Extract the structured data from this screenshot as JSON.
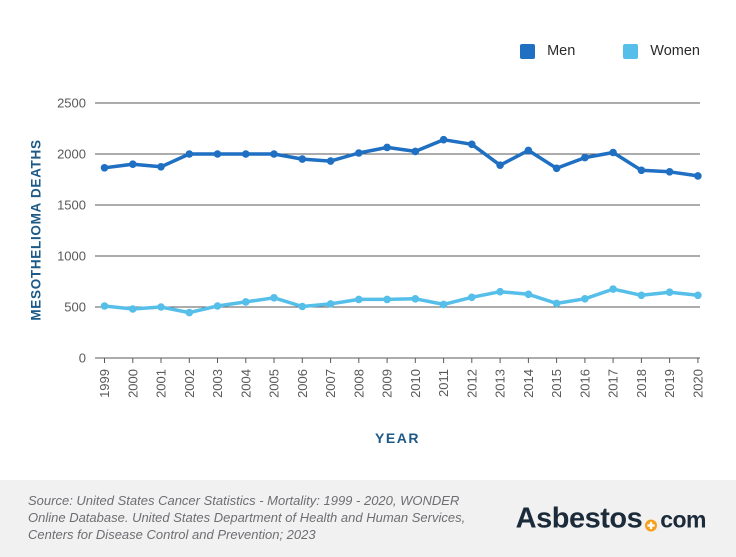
{
  "chart_data": {
    "type": "line",
    "title": "",
    "x": [
      1999,
      2000,
      2001,
      2002,
      2003,
      2004,
      2005,
      2006,
      2007,
      2008,
      2009,
      2010,
      2011,
      2012,
      2013,
      2014,
      2015,
      2016,
      2017,
      2018,
      2019,
      2020
    ],
    "series": [
      {
        "name": "Men",
        "color": "#1f6fc2",
        "values": [
          1865,
          1900,
          1875,
          2000,
          2000,
          2000,
          2000,
          1950,
          1930,
          2010,
          2065,
          2025,
          2140,
          2095,
          1890,
          2035,
          1860,
          1965,
          2015,
          1840,
          1825,
          1785
        ]
      },
      {
        "name": "Women",
        "color": "#55bfea",
        "values": [
          510,
          480,
          500,
          445,
          510,
          550,
          590,
          505,
          530,
          575,
          575,
          580,
          525,
          595,
          650,
          625,
          535,
          580,
          675,
          615,
          645,
          615
        ]
      }
    ],
    "xlabel": "YEAR",
    "ylabel": "MESOTHELIOMA DEATHS",
    "ylim": [
      0,
      2500
    ],
    "yticks": [
      0,
      500,
      1000,
      1500,
      2000,
      2500
    ],
    "grid": true,
    "legend_position": "top-right"
  },
  "footer": {
    "source": "Source: United States Cancer Statistics - Mortality: 1999 - 2020, WONDER\nOnline Database. United States Department of Health and Human Services,\nCenters for Disease Control and Prevention; 2023",
    "logo": {
      "brand": "Asbestos",
      "tld": "com"
    }
  },
  "colors": {
    "navy": "#1d5a87",
    "grid": "#5a5a5a",
    "tick": "#58595b",
    "footer_bg": "#f1f1f2",
    "footer_text": "#6d6e71",
    "logo_navy": "#1c2b39",
    "logo_orange": "#f7a01d"
  }
}
